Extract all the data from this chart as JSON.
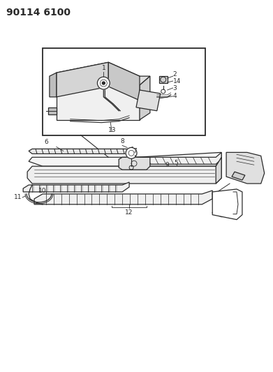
{
  "title": "90114 6100",
  "bg_color": "#ffffff",
  "line_color": "#2a2a2a",
  "fig_width": 3.91,
  "fig_height": 5.33,
  "dpi": 100,
  "title_fontsize": 10,
  "label_fontsize": 6.5
}
